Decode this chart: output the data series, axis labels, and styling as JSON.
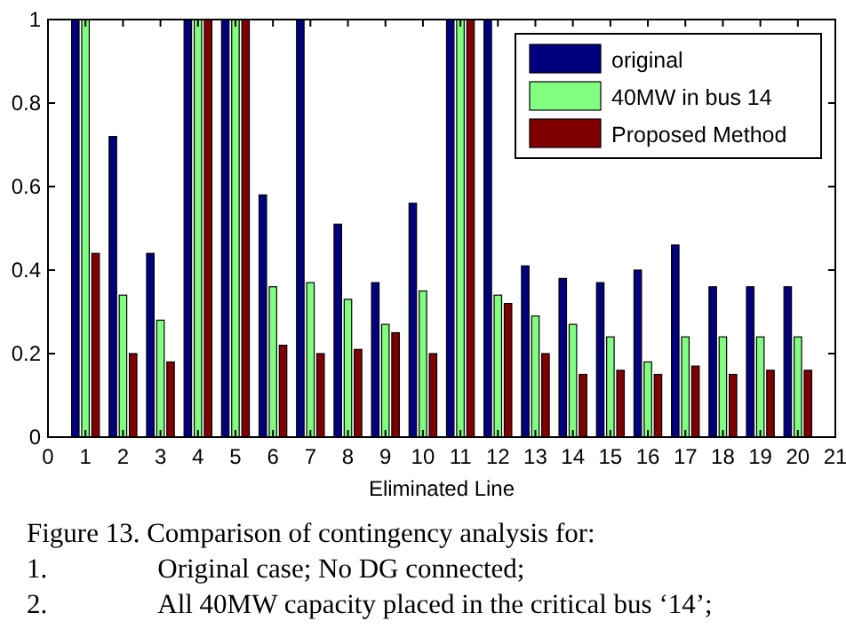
{
  "chart_data": {
    "type": "bar",
    "xlabel": "Eliminated Line",
    "x": [
      1,
      2,
      3,
      4,
      5,
      6,
      7,
      8,
      9,
      10,
      11,
      12,
      13,
      14,
      15,
      16,
      17,
      18,
      19,
      20
    ],
    "xlim": [
      0,
      21
    ],
    "xticks": [
      0,
      1,
      2,
      3,
      4,
      5,
      6,
      7,
      8,
      9,
      10,
      11,
      12,
      13,
      14,
      15,
      16,
      17,
      18,
      19,
      20,
      21
    ],
    "ylim": [
      0,
      1
    ],
    "yticks": [
      0,
      0.2,
      0.4,
      0.6,
      0.8,
      1
    ],
    "grid": false,
    "legend": "top right",
    "series": [
      {
        "name": "original",
        "color": "#00007f",
        "values": [
          1,
          0.72,
          0.44,
          1,
          1,
          0.58,
          1,
          0.51,
          0.37,
          0.56,
          1,
          1,
          0.41,
          0.38,
          0.37,
          0.4,
          0.46,
          0.36,
          0.36,
          0.36
        ]
      },
      {
        "name": "40MW in bus 14",
        "color": "#80ff80",
        "values": [
          1,
          0.34,
          0.28,
          1,
          1,
          0.36,
          0.37,
          0.33,
          0.27,
          0.35,
          1,
          0.34,
          0.29,
          0.27,
          0.24,
          0.18,
          0.24,
          0.24,
          0.24,
          0.24
        ]
      },
      {
        "name": "Proposed Method",
        "color": "#800000",
        "values": [
          0.44,
          0.2,
          0.18,
          1,
          1,
          0.22,
          0.2,
          0.21,
          0.25,
          0.2,
          1,
          0.32,
          0.2,
          0.15,
          0.16,
          0.15,
          0.17,
          0.15,
          0.16,
          0.16
        ]
      }
    ],
    "annotations": [
      "Figure 13. Comparison of contingency analysis for:",
      "1.    Original case; No DG connected;",
      "2.    All 40MW capacity placed in the critical bus ‘14’;"
    ]
  }
}
